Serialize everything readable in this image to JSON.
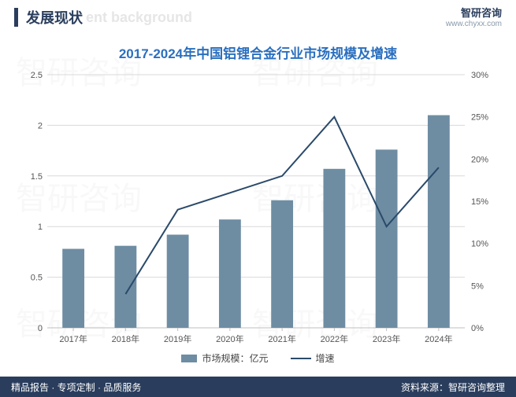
{
  "header": {
    "title_cn": "发展现状",
    "title_en_ghost": "ent background",
    "brand_name": "智研咨询",
    "brand_url": "www.chyxx.com"
  },
  "chart": {
    "title": "2017-2024年中国铝锂合金行业市场规模及增速",
    "type": "bar+line",
    "categories": [
      "2017年",
      "2018年",
      "2019年",
      "2020年",
      "2021年",
      "2022年",
      "2023年",
      "2024年"
    ],
    "bar_series": {
      "name": "市场规模：亿元",
      "values": [
        0.78,
        0.81,
        0.92,
        1.07,
        1.26,
        1.57,
        1.76,
        2.1
      ],
      "color": "#6e8da3"
    },
    "line_series": {
      "name": "增速",
      "values_pct": [
        null,
        4,
        14,
        16,
        18,
        25,
        12,
        19
      ],
      "color": "#2a4a6a",
      "line_width": 2
    },
    "y_left": {
      "min": 0,
      "max": 2.5,
      "step": 0.5,
      "ticks": [
        "0",
        "0.5",
        "1",
        "1.5",
        "2",
        "2.5"
      ]
    },
    "y_right": {
      "min": 0,
      "max": 30,
      "step": 5,
      "ticks": [
        "0%",
        "5%",
        "10%",
        "15%",
        "20%",
        "25%",
        "30%"
      ]
    },
    "plot": {
      "background": "#ffffff",
      "grid_color": "#d9d9d9",
      "axis_color": "#bfbfbf",
      "tick_font_size": 11,
      "bar_width_ratio": 0.42
    },
    "legend": {
      "bar_label": "市场规模：亿元",
      "line_label": "增速"
    }
  },
  "footer": {
    "left": "精品报告 · 专项定制 · 品质服务",
    "right": "资料来源：智研咨询整理"
  },
  "watermark": "智研咨询"
}
